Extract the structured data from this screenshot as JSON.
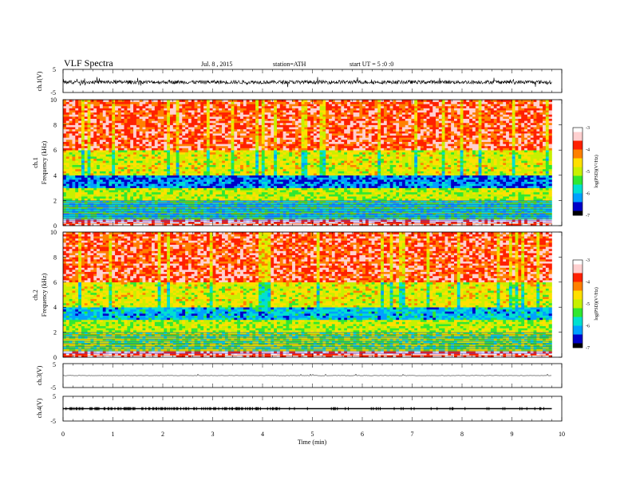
{
  "header": {
    "title": "VLF Spectra",
    "date": "Jul. 8 , 2015",
    "station": "station=ATH",
    "start": "start UT = 5 :0 :0"
  },
  "axes": {
    "x_label": "Time (min)",
    "x_ticks": [
      "0",
      "1",
      "2",
      "3",
      "4",
      "5",
      "6",
      "7",
      "8",
      "9",
      "10"
    ],
    "ch1v_label": "ch.1(V)",
    "ch1v_ticks": [
      "5",
      "-5"
    ],
    "spec1_label": "ch.1",
    "spec2_label": "ch.2",
    "freq_label": "Frequency (kHz)",
    "freq_ticks": [
      "0",
      "2",
      "4",
      "6",
      "8",
      "10"
    ],
    "ch3v_label": "ch.3(V)",
    "ch3v_ticks": [
      "5",
      "-5"
    ],
    "ch4v_label": "ch.4(V)",
    "ch4v_ticks": [
      "5",
      "-5"
    ]
  },
  "colorbar": {
    "label": "log(PSD)(V²/Hz)",
    "ticks": [
      "-3",
      "-4",
      "-5",
      "-6",
      "-7"
    ],
    "colors": [
      "#000000",
      "#0000c8",
      "#00a0ff",
      "#00e0d0",
      "#30e830",
      "#c8f000",
      "#ffe000",
      "#ff8000",
      "#ff2000",
      "#ffd0d0",
      "#ffffff"
    ]
  },
  "chart_data": [
    {
      "type": "line",
      "title": "ch.1(V)",
      "xlabel": "Time (min)",
      "ylabel": "ch.1(V)",
      "xlim": [
        0,
        9.8
      ],
      "ylim": [
        -5,
        5
      ],
      "note": "dense waveform around -0.5 V with fluctuations roughly between -2 and 1 V"
    },
    {
      "type": "heatmap",
      "title": "ch.1",
      "xlabel": "Time (min)",
      "ylabel": "Frequency (kHz)",
      "xlim": [
        0,
        9.8
      ],
      "ylim": [
        0,
        10
      ],
      "zlabel": "log(PSD)(V²/Hz)",
      "zlim": [
        -7,
        -3
      ],
      "bands": [
        {
          "freq_range_khz": [
            0,
            0.5
          ],
          "log_psd": -3.5
        },
        {
          "freq_range_khz": [
            0.5,
            2
          ],
          "log_psd": -5.8
        },
        {
          "freq_range_khz": [
            2,
            3
          ],
          "log_psd": -5.0
        },
        {
          "freq_range_khz": [
            3,
            4
          ],
          "log_psd": -6.3
        },
        {
          "freq_range_khz": [
            4,
            6
          ],
          "log_psd": -4.8
        },
        {
          "freq_range_khz": [
            6,
            10
          ],
          "log_psd": -3.8
        }
      ]
    },
    {
      "type": "heatmap",
      "title": "ch.2",
      "xlabel": "Time (min)",
      "ylabel": "Frequency (kHz)",
      "xlim": [
        0,
        9.8
      ],
      "ylim": [
        0,
        10
      ],
      "zlabel": "log(PSD)(V²/Hz)",
      "zlim": [
        -7,
        -3
      ],
      "bands": [
        {
          "freq_range_khz": [
            0,
            0.5
          ],
          "log_psd": -3.5
        },
        {
          "freq_range_khz": [
            0.5,
            2
          ],
          "log_psd": -5.3
        },
        {
          "freq_range_khz": [
            2,
            3
          ],
          "log_psd": -5.0
        },
        {
          "freq_range_khz": [
            3,
            4
          ],
          "log_psd": -6.0
        },
        {
          "freq_range_khz": [
            4,
            6
          ],
          "log_psd": -4.8
        },
        {
          "freq_range_khz": [
            6,
            10
          ],
          "log_psd": -3.8
        }
      ]
    },
    {
      "type": "line",
      "title": "ch.3(V)",
      "xlabel": "Time (min)",
      "ylabel": "ch.3(V)",
      "xlim": [
        0,
        9.8
      ],
      "ylim": [
        -5,
        5
      ],
      "note": "nearly flat near 0 V"
    },
    {
      "type": "line",
      "title": "ch.4(V)",
      "xlabel": "Time (min)",
      "ylabel": "ch.4(V)",
      "xlim": [
        0,
        9.8
      ],
      "ylim": [
        -5,
        5
      ],
      "note": "flat near 0 V with short spikes, denser before ~4.3 min"
    }
  ]
}
